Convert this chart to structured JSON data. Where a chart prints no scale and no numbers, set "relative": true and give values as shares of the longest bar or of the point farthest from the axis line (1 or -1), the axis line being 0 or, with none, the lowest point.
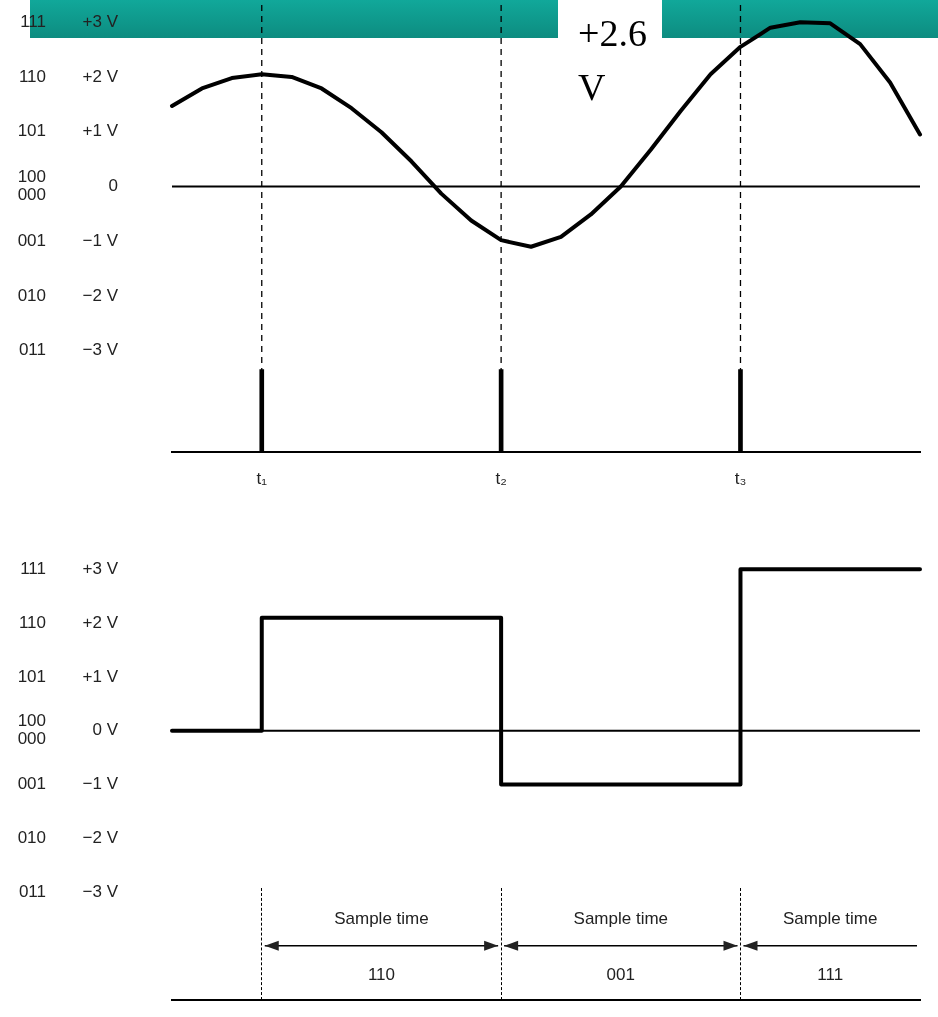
{
  "chart_data": [
    {
      "type": "line",
      "marker": "none",
      "tick_labels": "y",
      "categories": [
        null,
        null,
        null,
        null,
        null,
        null,
        null,
        null,
        null,
        null,
        null,
        null,
        null,
        null,
        null,
        null,
        null,
        null,
        null,
        null,
        null,
        null,
        null,
        null,
        null,
        null
      ],
      "series": [
        {
          "color": "#000000",
          "values": [
            1.47,
            1.79,
            1.98,
            2.05,
            2.0,
            1.79,
            1.43,
            0.99,
            0.46,
            -0.13,
            -0.62,
            -0.98,
            -1.1,
            -0.92,
            -0.51,
            0,
            0.67,
            1.38,
            2.05,
            2.55,
            2.9,
            3.0,
            2.98,
            2.6,
            1.9,
            0.95
          ]
        }
      ],
      "ylim": [
        -3,
        3
      ],
      "yticks": [
        {
          "value": 3,
          "label": "+3 V"
        },
        {
          "value": 2,
          "label": "+2 V"
        },
        {
          "value": 1,
          "label": "+1 V"
        },
        0,
        {
          "value": -1,
          "label": "−1 V"
        },
        {
          "value": -2,
          "label": "−2 V"
        },
        {
          "value": -3,
          "label": "−3 V"
        }
      ],
      "ref_lines": [
        {
          "axis": "y",
          "value": 0
        }
      ],
      "annotations": [
        "111",
        "110",
        "101",
        "100\n000",
        "001",
        "010",
        "011",
        "+2.6 V"
      ]
    },
    {
      "type": "bar",
      "relative": true,
      "color": "#000000",
      "tick_labels": "x",
      "categories": [
        null,
        null,
        null,
        "t₁",
        null,
        null,
        null,
        null,
        null,
        null,
        null,
        "t₂",
        null,
        null,
        null,
        null,
        null,
        null,
        null,
        "t₃",
        null,
        null,
        null,
        null,
        null,
        null
      ],
      "values": [
        null,
        null,
        null,
        1,
        null,
        null,
        null,
        null,
        null,
        null,
        null,
        1,
        null,
        null,
        null,
        null,
        null,
        null,
        null,
        1,
        null,
        null,
        null,
        null,
        null,
        null
      ],
      "ref_lines": [
        {
          "axis": "x",
          "value": "t₁",
          "line_style": "dashed"
        },
        {
          "axis": "x",
          "value": "t₂",
          "line_style": "dashed"
        },
        {
          "axis": "x",
          "value": "t₃",
          "line_style": "dashed"
        }
      ]
    },
    {
      "type": "step",
      "tick_labels": "y",
      "marker": "none",
      "categories": [
        null,
        null,
        null,
        null,
        null,
        null,
        null,
        null,
        null,
        null,
        null,
        null,
        null,
        null,
        null,
        null,
        null,
        null,
        null,
        null,
        null,
        null,
        null,
        null,
        null,
        null
      ],
      "series": [
        {
          "color": "#000000",
          "values": [
            0,
            0,
            0,
            2.1,
            2.1,
            2.1,
            2.1,
            2.1,
            2.1,
            2.1,
            2.1,
            -1,
            -1,
            -1,
            -1,
            -1,
            -1,
            -1,
            -1,
            3,
            3,
            3,
            3,
            3,
            3,
            3
          ]
        }
      ],
      "ylim": [
        -5,
        3
      ],
      "yticks": [
        {
          "value": 3,
          "label": "+3 V"
        },
        {
          "value": 2,
          "label": "+2 V"
        },
        {
          "value": 1,
          "label": "+1 V"
        },
        {
          "value": 0,
          "label": "0 V"
        },
        {
          "value": -1,
          "label": "−1 V"
        },
        {
          "value": -2,
          "label": "−2 V"
        },
        {
          "value": -3,
          "label": "−3 V"
        }
      ],
      "ref_lines": [
        {
          "axis": "y",
          "value": 0
        }
      ],
      "annotations": [
        "111",
        "110",
        "101",
        "100\n000",
        "001",
        "010",
        "011",
        "Sample time",
        "110",
        "Sample time",
        "001",
        "Sample time",
        "111"
      ]
    }
  ]
}
